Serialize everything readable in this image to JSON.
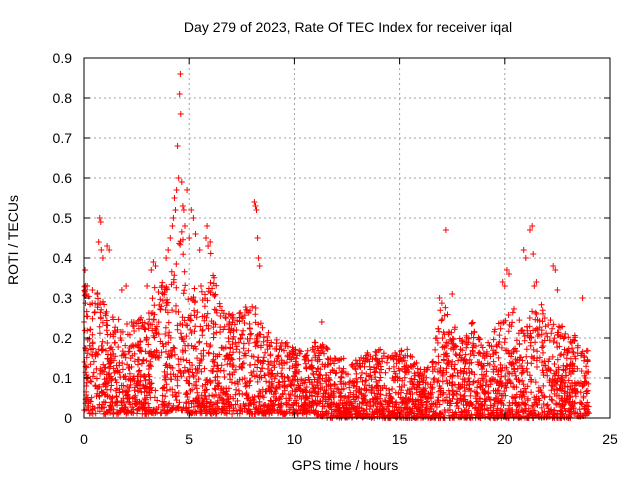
{
  "chart_data": {
    "type": "scatter",
    "title": "Day 279 of 2023, Rate Of TEC Index for receiver iqal",
    "xlabel": "GPS time / hours",
    "ylabel": "ROTI / TECUs",
    "xlim": [
      0,
      25
    ],
    "ylim": [
      0,
      0.9
    ],
    "xticks": [
      "0",
      "5",
      "10",
      "15",
      "20",
      "25"
    ],
    "yticks": [
      "0",
      "0.1",
      "0.2",
      "0.3",
      "0.4",
      "0.5",
      "0.6",
      "0.7",
      "0.8",
      "0.9"
    ],
    "grid": true,
    "legend": "none",
    "marker": "plus",
    "color": "#ff0000",
    "envelope": {
      "x": [
        0.0,
        0.3,
        0.7,
        1.0,
        1.5,
        2.0,
        2.5,
        3.0,
        3.5,
        4.0,
        4.3,
        4.6,
        5.0,
        5.5,
        6.0,
        6.5,
        7.0,
        7.5,
        8.0,
        8.5,
        9.0,
        9.5,
        10.0,
        10.5,
        11.0,
        11.5,
        12.0,
        12.5,
        13.0,
        13.5,
        14.0,
        14.5,
        15.0,
        15.5,
        16.0,
        16.5,
        17.0,
        17.5,
        18.0,
        18.5,
        19.0,
        19.5,
        20.0,
        20.5,
        21.0,
        21.5,
        22.0,
        22.5,
        23.0,
        23.5,
        24.0
      ],
      "y_max": [
        0.36,
        0.3,
        0.33,
        0.28,
        0.25,
        0.24,
        0.25,
        0.27,
        0.36,
        0.33,
        0.4,
        0.48,
        0.36,
        0.33,
        0.42,
        0.28,
        0.27,
        0.27,
        0.3,
        0.23,
        0.2,
        0.2,
        0.18,
        0.16,
        0.2,
        0.18,
        0.15,
        0.15,
        0.15,
        0.17,
        0.18,
        0.16,
        0.18,
        0.17,
        0.13,
        0.14,
        0.29,
        0.25,
        0.2,
        0.25,
        0.17,
        0.22,
        0.26,
        0.28,
        0.22,
        0.3,
        0.27,
        0.25,
        0.22,
        0.2,
        0.17
      ],
      "y_min": [
        0.02,
        0.01,
        0.01,
        0.01,
        0.01,
        0.01,
        0.01,
        0.01,
        0.01,
        0.01,
        0.02,
        0.02,
        0.01,
        0.01,
        0.01,
        0.01,
        0.01,
        0.01,
        0.01,
        0.01,
        0.01,
        0.01,
        0.01,
        0.01,
        0.01,
        0.0,
        0.0,
        0.0,
        0.0,
        0.0,
        0.0,
        0.0,
        0.0,
        0.0,
        0.0,
        0.0,
        0.0,
        0.0,
        0.0,
        0.0,
        0.0,
        0.0,
        0.0,
        0.0,
        0.0,
        0.0,
        0.0,
        0.0,
        0.0,
        0.0,
        0.01
      ]
    },
    "points": [
      [
        0.0,
        0.24
      ],
      [
        0.05,
        0.37
      ],
      [
        0.1,
        0.31
      ],
      [
        0.15,
        0.33
      ],
      [
        0.4,
        0.32
      ],
      [
        0.7,
        0.44
      ],
      [
        0.75,
        0.5
      ],
      [
        0.8,
        0.49
      ],
      [
        0.82,
        0.42
      ],
      [
        0.9,
        0.4
      ],
      [
        1.1,
        0.43
      ],
      [
        1.2,
        0.42
      ],
      [
        1.8,
        0.32
      ],
      [
        2.0,
        0.33
      ],
      [
        3.0,
        0.33
      ],
      [
        3.2,
        0.37
      ],
      [
        3.3,
        0.39
      ],
      [
        3.4,
        0.38
      ],
      [
        3.9,
        0.4
      ],
      [
        4.0,
        0.42
      ],
      [
        4.1,
        0.45
      ],
      [
        4.2,
        0.48
      ],
      [
        4.25,
        0.5
      ],
      [
        4.3,
        0.55
      ],
      [
        4.35,
        0.52
      ],
      [
        4.4,
        0.57
      ],
      [
        4.45,
        0.68
      ],
      [
        4.5,
        0.6
      ],
      [
        4.55,
        0.81
      ],
      [
        4.58,
        0.86
      ],
      [
        4.6,
        0.76
      ],
      [
        4.65,
        0.59
      ],
      [
        4.7,
        0.53
      ],
      [
        4.75,
        0.52
      ],
      [
        4.8,
        0.48
      ],
      [
        4.9,
        0.57
      ],
      [
        5.0,
        0.45
      ],
      [
        5.1,
        0.52
      ],
      [
        5.2,
        0.5
      ],
      [
        5.3,
        0.46
      ],
      [
        5.5,
        0.42
      ],
      [
        5.8,
        0.45
      ],
      [
        5.85,
        0.48
      ],
      [
        5.9,
        0.43
      ],
      [
        6.0,
        0.44
      ],
      [
        8.1,
        0.54
      ],
      [
        8.15,
        0.53
      ],
      [
        8.2,
        0.52
      ],
      [
        8.25,
        0.45
      ],
      [
        8.3,
        0.4
      ],
      [
        8.35,
        0.38
      ],
      [
        11.3,
        0.24
      ],
      [
        16.9,
        0.3
      ],
      [
        17.2,
        0.47
      ],
      [
        17.5,
        0.31
      ],
      [
        19.9,
        0.34
      ],
      [
        20.0,
        0.33
      ],
      [
        20.1,
        0.37
      ],
      [
        20.2,
        0.36
      ],
      [
        20.9,
        0.42
      ],
      [
        21.0,
        0.4
      ],
      [
        21.2,
        0.47
      ],
      [
        21.3,
        0.48
      ],
      [
        21.35,
        0.41
      ],
      [
        21.4,
        0.33
      ],
      [
        21.5,
        0.34
      ],
      [
        22.3,
        0.38
      ],
      [
        22.4,
        0.37
      ],
      [
        22.5,
        0.32
      ],
      [
        23.7,
        0.3
      ]
    ]
  }
}
